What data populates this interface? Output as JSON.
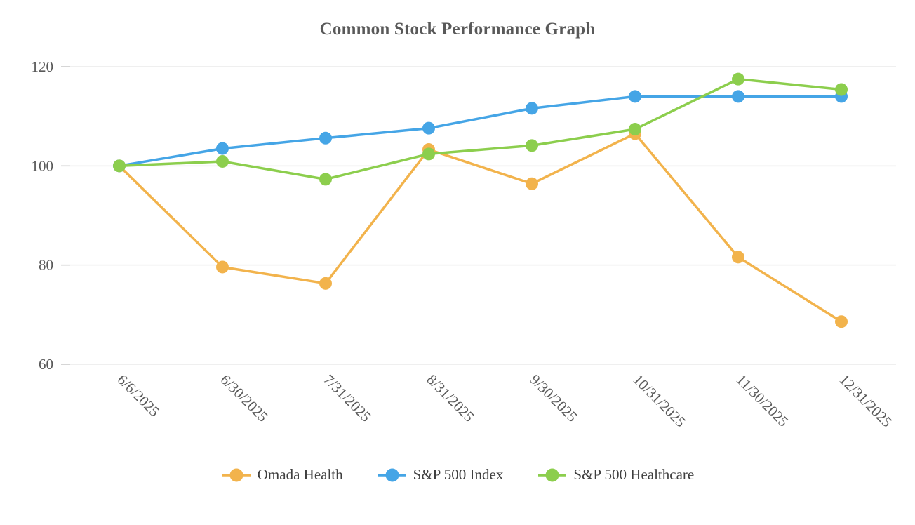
{
  "chart_data": {
    "type": "line",
    "title": "Common Stock Performance Graph",
    "x": [
      "6/6/2025",
      "6/30/2025",
      "7/31/2025",
      "8/31/2025",
      "9/30/2025",
      "10/31/2025",
      "11/30/2025",
      "12/31/2025"
    ],
    "series": [
      {
        "name": "Omada Health",
        "color": "#F2B34C",
        "values": [
          100,
          79.6,
          76.3,
          103.3,
          96.4,
          106.5,
          81.6,
          68.6
        ]
      },
      {
        "name": "S&P 500 Index",
        "color": "#45A5E6",
        "values": [
          100,
          103.5,
          105.6,
          107.6,
          111.6,
          114,
          114,
          114
        ]
      },
      {
        "name": "S&P 500 Healthcare",
        "color": "#8CCE4D",
        "values": [
          100,
          100.9,
          97.3,
          102.4,
          104.1,
          107.4,
          117.5,
          115.4
        ]
      }
    ],
    "y_ticks": [
      60,
      80,
      100,
      120
    ],
    "ylim": [
      60,
      120
    ],
    "grid": true,
    "legend_position": "bottom",
    "xlabel": "",
    "ylabel": ""
  },
  "styles": {
    "grid_color": "#EAEAEA",
    "tick_color": "#C8C8C8",
    "axis_text_color": "#595959",
    "title_color": "#595959",
    "legend_text_color": "#3F3F3F"
  }
}
